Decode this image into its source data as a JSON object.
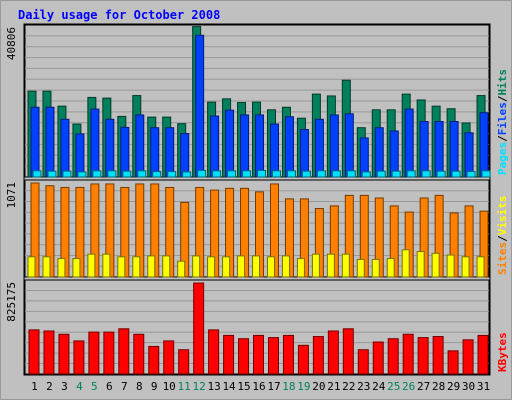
{
  "chart_data": {
    "type": "bar",
    "title": "Daily usage for October 2008",
    "colors": {
      "title": "#0000ff",
      "background": "#c0c0c0",
      "plot_background": "#c0c0c0",
      "grid": "#999999",
      "hits": "#00805c",
      "files": "#0040ff",
      "pages": "#00e0ff",
      "visits": "#ffff00",
      "sites": "#ff8000",
      "kbytes": "#ff0000",
      "weekend_day_label": "#00805c",
      "weekday_label": "#000000"
    },
    "days": [
      "1",
      "2",
      "3",
      "4",
      "5",
      "6",
      "7",
      "8",
      "9",
      "10",
      "11",
      "12",
      "13",
      "14",
      "15",
      "16",
      "17",
      "18",
      "19",
      "20",
      "21",
      "22",
      "23",
      "24",
      "25",
      "26",
      "27",
      "28",
      "29",
      "30",
      "31"
    ],
    "weekend_days": [
      "4",
      "5",
      "11",
      "12",
      "18",
      "19",
      "25",
      "26"
    ],
    "panels": [
      {
        "id": "hits-files-pages",
        "max_label": "40806",
        "max": 40806,
        "legend": [
          {
            "label": "Pages",
            "color": "#00e0ff"
          },
          {
            "label": "/",
            "color": "#000000"
          },
          {
            "label": "Files",
            "color": "#0040ff"
          },
          {
            "label": "/",
            "color": "#000000"
          },
          {
            "label": "Hits",
            "color": "#00805c"
          }
        ],
        "series": [
          {
            "name": "Hits",
            "color": "#00805c",
            "values": [
              23500,
              23500,
              19400,
              14500,
              21800,
              21600,
              16600,
              22300,
              16400,
              16400,
              14600,
              41200,
              20500,
              21400,
              20400,
              20500,
              18400,
              19100,
              16100,
              22700,
              22200,
              26500,
              13500,
              18400,
              18400,
              22700,
              21100,
              19400,
              18700,
              14800,
              22300
            ]
          },
          {
            "name": "Files",
            "color": "#0040ff",
            "values": [
              19100,
              19100,
              15800,
              11800,
              18600,
              15800,
              13600,
              17000,
              13500,
              13500,
              11900,
              38800,
              16700,
              18300,
              17000,
              17000,
              14500,
              16500,
              13000,
              15800,
              17000,
              17300,
              10700,
              13500,
              12600,
              18600,
              15200,
              15200,
              15200,
              12100,
              17600
            ]
          },
          {
            "name": "Pages",
            "color": "#00e0ff",
            "values": [
              1700,
              1600,
              1600,
              1400,
              1700,
              1700,
              1600,
              1700,
              1500,
              1500,
              1400,
              1800,
              1700,
              1700,
              1700,
              1800,
              1700,
              1700,
              1600,
              1700,
              1700,
              1700,
              1400,
              1600,
              1600,
              1700,
              1700,
              1600,
              1600,
              1500,
              1700
            ]
          }
        ]
      },
      {
        "id": "visits-sites",
        "max_label": "1071",
        "max": 1071,
        "legend": [
          {
            "label": "Sites",
            "color": "#ff8000"
          },
          {
            "label": "/",
            "color": "#000000"
          },
          {
            "label": "Visits",
            "color": "#ffff00"
          }
        ],
        "series": [
          {
            "name": "Sites",
            "color": "#ff8000",
            "values": [
              1071,
              1040,
              1020,
              1020,
              1060,
              1060,
              1020,
              1060,
              1060,
              1020,
              850,
              1020,
              990,
              1010,
              1010,
              970,
              1060,
              890,
              890,
              780,
              810,
              930,
              930,
              900,
              810,
              740,
              900,
              930,
              730,
              810,
              750
            ]
          },
          {
            "name": "Visits",
            "color": "#ffff00",
            "values": [
              230,
              230,
              210,
              210,
              260,
              260,
              230,
              230,
              240,
              240,
              180,
              240,
              230,
              230,
              240,
              240,
              230,
              240,
              210,
              260,
              260,
              260,
              200,
              200,
              210,
              310,
              290,
              270,
              250,
              230,
              230
            ]
          }
        ]
      },
      {
        "id": "kbytes",
        "max_label": "825175",
        "max": 825175,
        "legend": [
          {
            "label": "KBytes",
            "color": "#ff0000"
          }
        ],
        "series": [
          {
            "name": "KBytes",
            "color": "#ff0000",
            "values": [
              400000,
              390000,
              360000,
              300000,
              380000,
              380000,
              410000,
              360000,
              250000,
              300000,
              220000,
              825175,
              400000,
              350000,
              320000,
              350000,
              330000,
              350000,
              260000,
              340000,
              390000,
              410000,
              220000,
              290000,
              320000,
              360000,
              330000,
              340000,
              210000,
              310000,
              350000
            ]
          }
        ]
      }
    ]
  }
}
